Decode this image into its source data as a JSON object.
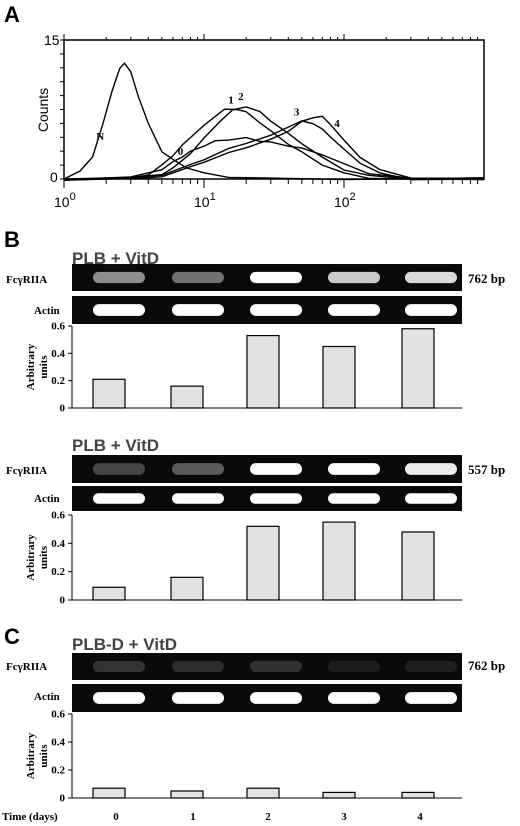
{
  "panels": {
    "A": "A",
    "B": "B",
    "C": "C"
  },
  "units": {
    "bp762": "762 bp",
    "bp557": "557 bp"
  },
  "gel_labels": {
    "fcgriia": "FcγRIIA",
    "actin": "Actin"
  },
  "time_axis_label": "Time (days)",
  "chart_data": [
    {
      "type": "line",
      "panel": "A",
      "ylabel": "Counts",
      "xscale": "log",
      "xlim": [
        1,
        1000
      ],
      "ylim": [
        0,
        15
      ],
      "xticks": [
        "10^0",
        "10^1",
        "10^2"
      ],
      "yticks": [
        "0",
        "15"
      ],
      "series": [
        {
          "name": "N",
          "x": [
            1.0,
            1.3,
            1.6,
            1.9,
            2.2,
            2.5,
            2.7,
            3.0,
            3.4,
            4.0,
            5.0,
            6.0,
            7.5,
            10,
            15,
            30,
            100,
            1000
          ],
          "y": [
            0,
            0.8,
            2.5,
            6,
            9.5,
            11.8,
            12.5,
            11.5,
            9,
            6,
            3,
            2,
            1.2,
            0.6,
            0.3,
            0.1,
            0,
            0
          ]
        },
        {
          "name": "0",
          "x": [
            1,
            3,
            5,
            6,
            7,
            8,
            10,
            12,
            15,
            20,
            25,
            30,
            40,
            50,
            70,
            100,
            150,
            300,
            1000
          ],
          "y": [
            0,
            0.1,
            1,
            1.8,
            2.5,
            3,
            3.6,
            4,
            4.2,
            4.4,
            4.2,
            4,
            3.6,
            3.2,
            2.6,
            1.6,
            0.7,
            0.1,
            0
          ]
        },
        {
          "name": "1",
          "x": [
            1,
            3,
            4,
            5,
            6,
            7,
            8,
            10,
            12,
            14,
            17,
            20,
            25,
            30,
            40,
            50,
            70,
            100,
            150,
            300,
            1000
          ],
          "y": [
            0,
            0.1,
            0.5,
            1.4,
            2.5,
            3.6,
            4.6,
            5.8,
            6.8,
            7.4,
            7.5,
            7.2,
            6.2,
            5.2,
            3.8,
            2.8,
            1.5,
            0.6,
            0.2,
            0,
            0
          ]
        },
        {
          "name": "2",
          "x": [
            1,
            3,
            5,
            6,
            8,
            10,
            13,
            16,
            20,
            25,
            30,
            40,
            50,
            70,
            100,
            150,
            300,
            1000
          ],
          "y": [
            0,
            0.1,
            0.6,
            1.2,
            2.8,
            4.3,
            6.2,
            7.4,
            7.9,
            7.3,
            6.3,
            4.8,
            3.8,
            2.3,
            1.1,
            0.4,
            0.05,
            0
          ]
        },
        {
          "name": "3",
          "x": [
            1,
            3,
            5,
            8,
            10,
            15,
            20,
            30,
            40,
            50,
            60,
            70,
            80,
            100,
            130,
            180,
            300,
            1000
          ],
          "y": [
            0,
            0.05,
            0.4,
            1.5,
            2.2,
            3.3,
            3.9,
            4.6,
            5.6,
            6.2,
            6.1,
            5.4,
            4.6,
            3.1,
            1.7,
            0.6,
            0.05,
            0
          ]
        },
        {
          "name": "4",
          "x": [
            1,
            3,
            5,
            8,
            10,
            15,
            20,
            30,
            40,
            50,
            60,
            70,
            80,
            100,
            130,
            180,
            300,
            1000
          ],
          "y": [
            0,
            0.05,
            0.3,
            1.2,
            1.8,
            2.8,
            3.5,
            4.3,
            5.2,
            6.1,
            6.6,
            6.7,
            6.0,
            4.2,
            2.4,
            0.9,
            0.1,
            0
          ]
        }
      ]
    },
    {
      "type": "bar",
      "panel": "B",
      "title": "PLB + VitD",
      "size_label": "762 bp",
      "ylabel": "Arbitrary units",
      "categories": [
        "0",
        "1",
        "2",
        "3",
        "4"
      ],
      "values": [
        0.21,
        0.16,
        0.53,
        0.45,
        0.58
      ],
      "ylim": [
        0,
        0.6
      ],
      "yticks": [
        "0",
        "0.2",
        "0.4",
        "0.6"
      ],
      "gel_fcgriia": [
        0.65,
        0.55,
        1.0,
        0.85,
        0.9
      ],
      "gel_actin": [
        1,
        1,
        1,
        1,
        1
      ]
    },
    {
      "type": "bar",
      "panel": "B",
      "title": "PLB + VitD",
      "size_label": "557 bp",
      "ylabel": "Arbitrary units",
      "categories": [
        "0",
        "1",
        "2",
        "3",
        "4"
      ],
      "values": [
        0.09,
        0.16,
        0.52,
        0.55,
        0.48
      ],
      "ylim": [
        0,
        0.6
      ],
      "yticks": [
        "0",
        "0.2",
        "0.4",
        "0.6"
      ],
      "gel_fcgriia": [
        0.35,
        0.45,
        1.0,
        1.0,
        0.95
      ],
      "gel_actin": [
        1,
        1,
        1,
        1,
        1
      ]
    },
    {
      "type": "bar",
      "panel": "C",
      "title": "PLB-D + VitD",
      "size_label": "762 bp",
      "ylabel": "Arbitrary units",
      "categories": [
        "0",
        "1",
        "2",
        "3",
        "4"
      ],
      "values": [
        0.07,
        0.05,
        0.07,
        0.04,
        0.04
      ],
      "ylim": [
        0,
        0.6
      ],
      "yticks": [
        "0",
        "0.2",
        "0.4",
        "0.6"
      ],
      "gel_fcgriia": [
        0.25,
        0.2,
        0.22,
        0.08,
        0.1
      ],
      "gel_actin": [
        1,
        1,
        1,
        1,
        1
      ]
    }
  ]
}
